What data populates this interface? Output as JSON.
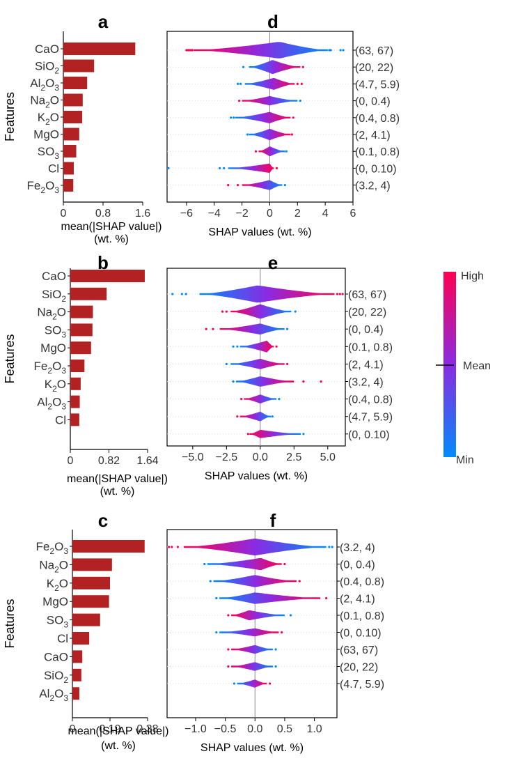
{
  "colors": {
    "bar": "#b22222",
    "high": "#ff0051",
    "mid": "#8a2be2",
    "low": "#008bfb",
    "axis": "#000000",
    "grid": "#dddddd",
    "zero": "#888888",
    "text": "#333333"
  },
  "colorbar": {
    "high": "High",
    "mean": "Mean",
    "low": "Min"
  },
  "chart_data": [
    {
      "id": "a",
      "type": "bar",
      "orientation": "horizontal",
      "panel_label": "a",
      "categories": [
        [
          "CaO"
        ],
        [
          "SiO",
          "2"
        ],
        [
          "Al",
          "2",
          "O",
          "3"
        ],
        [
          "Na",
          "2",
          "O"
        ],
        [
          "K",
          "2",
          "O"
        ],
        [
          "MgO"
        ],
        [
          "SO",
          "3"
        ],
        [
          "Cl"
        ],
        [
          "Fe",
          "2",
          "O",
          "3"
        ]
      ],
      "values": [
        1.45,
        0.62,
        0.48,
        0.39,
        0.38,
        0.32,
        0.26,
        0.21,
        0.2
      ],
      "xlim": [
        0,
        1.6
      ],
      "xticks": [
        0,
        0.8,
        1.6
      ],
      "xtick_labels": [
        "0",
        "0.8",
        "1.6"
      ],
      "ylabel": "Features",
      "xlabel": [
        "mean(|SHAP value|)",
        "(wt. %)"
      ]
    },
    {
      "id": "b",
      "type": "bar",
      "orientation": "horizontal",
      "panel_label": "b",
      "categories": [
        [
          "CaO"
        ],
        [
          "SiO",
          "2"
        ],
        [
          "Na",
          "2",
          "O"
        ],
        [
          "SO",
          "3"
        ],
        [
          "MgO"
        ],
        [
          "Fe",
          "2",
          "O",
          "3"
        ],
        [
          "K",
          "2",
          "O"
        ],
        [
          "Al",
          "2",
          "O",
          "3"
        ],
        [
          "Cl"
        ]
      ],
      "values": [
        1.58,
        0.77,
        0.48,
        0.47,
        0.44,
        0.3,
        0.22,
        0.2,
        0.19
      ],
      "xlim": [
        0,
        1.64
      ],
      "xticks": [
        0,
        0.82,
        1.64
      ],
      "xtick_labels": [
        "0",
        "0.82",
        "1.64"
      ],
      "ylabel": "Features",
      "xlabel": [
        "mean(|SHAP value|)",
        "(wt. %)"
      ]
    },
    {
      "id": "c",
      "type": "bar",
      "orientation": "horizontal",
      "panel_label": "c",
      "categories": [
        [
          "Fe",
          "2",
          "O",
          "3"
        ],
        [
          "Na",
          "2",
          "O"
        ],
        [
          "K",
          "2",
          "O"
        ],
        [
          "MgO"
        ],
        [
          "SO",
          "3"
        ],
        [
          "Cl"
        ],
        [
          "CaO"
        ],
        [
          "SiO",
          "2"
        ],
        [
          "Al",
          "2",
          "O",
          "3"
        ]
      ],
      "values": [
        0.365,
        0.2,
        0.19,
        0.185,
        0.14,
        0.085,
        0.05,
        0.045,
        0.035
      ],
      "xlim": [
        0,
        0.38
      ],
      "xticks": [
        0,
        0.19,
        0.38
      ],
      "xtick_labels": [
        "0",
        "0.19",
        "0.38"
      ],
      "ylabel": "Features",
      "xlabel": [
        "mean(|SHAP value|)",
        "(wt. %)"
      ]
    },
    {
      "id": "d",
      "type": "violin",
      "panel_label": "d",
      "row_labels": [
        "(63, 67)",
        "(20, 22)",
        "(4.7, 5.9)",
        "(0, 0.4)",
        "(0.4, 0.8)",
        "(2, 4.1)",
        "(0.1, 0.8)",
        "(0, 0.10)",
        "(3.2, 4)"
      ],
      "rows": [
        {
          "min": -5.5,
          "max": 4.2,
          "center": 0.7,
          "width": 0.5,
          "dir": -1,
          "out_left": [
            -6.0,
            -5.9,
            -5.8,
            -5.7,
            -5.6,
            -5.6
          ],
          "out_right": [
            4.3,
            4.4,
            5.1,
            5.3
          ]
        },
        {
          "min": -1.5,
          "max": 2.2,
          "center": 0.2,
          "width": 0.42,
          "dir": 1,
          "out_left": [
            -1.9
          ],
          "out_right": [
            2.4
          ]
        },
        {
          "min": -1.8,
          "max": 1.8,
          "center": 0.3,
          "width": 0.36,
          "dir": 1,
          "out_left": [
            -2.3,
            -2.1
          ],
          "out_right": [
            2.0,
            2.3
          ]
        },
        {
          "min": -2.0,
          "max": 2.0,
          "center": 0.0,
          "width": 0.28,
          "dir": -1,
          "out_left": [
            -2.2
          ],
          "out_right": [
            2.2
          ]
        },
        {
          "min": -2.5,
          "max": 1.5,
          "center": 0.0,
          "width": 0.34,
          "dir": 1,
          "out_left": [
            -2.8,
            -2.6
          ],
          "out_right": [
            1.7
          ]
        },
        {
          "min": -1.5,
          "max": 1.5,
          "center": 0.0,
          "width": 0.34,
          "dir": 1,
          "out_left": [
            -1.6
          ],
          "out_right": [
            1.6
          ]
        },
        {
          "min": -0.8,
          "max": 1.1,
          "center": 0.0,
          "width": 0.3,
          "dir": -1,
          "out_left": [
            -1.0
          ],
          "out_right": [
            1.2
          ]
        },
        {
          "min": -3.0,
          "max": 0.3,
          "center": 0.0,
          "width": 0.28,
          "dir": 1,
          "out_left": [
            -7.3,
            -3.6,
            -3.3
          ],
          "out_right": [
            0.5
          ]
        },
        {
          "min": -2.0,
          "max": 0.9,
          "center": 0.0,
          "width": 0.3,
          "dir": -1,
          "out_left": [
            -3.0,
            -2.3
          ],
          "out_right": [
            1.1
          ]
        }
      ],
      "xlim": [
        -7.4,
        6.0
      ],
      "xticks": [
        -6,
        -4,
        -2,
        0,
        2,
        4,
        6
      ],
      "xtick_labels": [
        "−6",
        "−4",
        "−2",
        "0",
        "2",
        "4",
        "6"
      ],
      "xlabel": "SHAP values (wt. %)"
    },
    {
      "id": "e",
      "type": "violin",
      "panel_label": "e",
      "row_labels": [
        "(63, 67)",
        "(20, 22)",
        "(0, 0.4)",
        "(0.1, 0.8)",
        "(2, 4.1)",
        "(3.2, 4)",
        "(0.4, 0.8)",
        "(4.7, 5.9)",
        "(0, 0.10)"
      ],
      "rows": [
        {
          "min": -4.5,
          "max": 5.5,
          "center": -0.2,
          "width": 0.5,
          "dir": 1,
          "out_left": [
            -6.5,
            -5.8,
            -5.5
          ],
          "out_right": [
            5.7,
            5.9,
            6.1
          ]
        },
        {
          "min": -2.2,
          "max": 2.3,
          "center": 0.0,
          "width": 0.42,
          "dir": -1,
          "out_left": [
            -2.8,
            -2.5
          ],
          "out_right": [
            2.6
          ]
        },
        {
          "min": -3.0,
          "max": 1.8,
          "center": 0.0,
          "width": 0.32,
          "dir": -1,
          "out_left": [
            -4.0,
            -3.5
          ],
          "out_right": [
            2.0
          ]
        },
        {
          "min": -1.5,
          "max": 1.0,
          "center": 0.5,
          "width": 0.34,
          "dir": 1,
          "out_left": [
            -2.0,
            -1.7
          ],
          "out_right": [
            1.2
          ]
        },
        {
          "min": -2.2,
          "max": 1.8,
          "center": 0.0,
          "width": 0.3,
          "dir": 1,
          "out_left": [
            -2.5
          ],
          "out_right": [
            2.0
          ]
        },
        {
          "min": -1.8,
          "max": 2.5,
          "center": 0.0,
          "width": 0.3,
          "dir": 1,
          "out_left": [
            -2.0
          ],
          "out_right": [
            3.2,
            4.5
          ]
        },
        {
          "min": -1.2,
          "max": 1.2,
          "center": 0.0,
          "width": 0.26,
          "dir": -1,
          "out_left": [
            -1.4
          ],
          "out_right": [
            1.4
          ]
        },
        {
          "min": -1.5,
          "max": 0.8,
          "center": 0.0,
          "width": 0.28,
          "dir": -1,
          "out_left": [
            -1.7
          ],
          "out_right": [
            0.9
          ]
        },
        {
          "min": -0.8,
          "max": 3.0,
          "center": 0.0,
          "width": 0.24,
          "dir": -1,
          "out_left": [
            -0.9
          ],
          "out_right": [
            3.2
          ]
        }
      ],
      "xlim": [
        -6.9,
        6.3
      ],
      "xticks": [
        -5,
        -2.5,
        0,
        2.5,
        5
      ],
      "xtick_labels": [
        "−5.0",
        "−2.5",
        "0.0",
        "2.5",
        "5.0"
      ],
      "xlabel": "SHAP values (wt. %)"
    },
    {
      "id": "f",
      "type": "violin",
      "panel_label": "f",
      "row_labels": [
        "(3.2, 4)",
        "(0, 0.4)",
        "(0.4, 0.8)",
        "(2, 4.1)",
        "(0.1, 0.8)",
        "(0, 0.10)",
        "(63, 67)",
        "(20, 22)",
        "(4.7, 5.9)"
      ],
      "rows": [
        {
          "min": -1.2,
          "max": 1.2,
          "center": 0.0,
          "width": 0.5,
          "dir": -1,
          "out_left": [
            -1.45,
            -1.4,
            -1.3
          ],
          "out_right": [
            1.25,
            1.3
          ]
        },
        {
          "min": -0.8,
          "max": 0.45,
          "center": 0.1,
          "width": 0.36,
          "dir": 1,
          "out_left": [
            -0.85
          ],
          "out_right": [
            0.5
          ]
        },
        {
          "min": -0.7,
          "max": 0.7,
          "center": 0.0,
          "width": 0.36,
          "dir": 1,
          "out_left": [
            -0.75
          ],
          "out_right": [
            0.75
          ]
        },
        {
          "min": -0.6,
          "max": 1.1,
          "center": 0.0,
          "width": 0.34,
          "dir": 1,
          "out_left": [
            -0.65
          ],
          "out_right": [
            1.2
          ]
        },
        {
          "min": -0.4,
          "max": 0.5,
          "center": -0.1,
          "width": 0.3,
          "dir": -1,
          "out_left": [
            -0.45
          ],
          "out_right": [
            0.6
          ]
        },
        {
          "min": -0.6,
          "max": 0.4,
          "center": 0.0,
          "width": 0.24,
          "dir": 1,
          "out_left": [
            -0.65
          ],
          "out_right": [
            0.45
          ]
        },
        {
          "min": -0.4,
          "max": 0.3,
          "center": 0.0,
          "width": 0.26,
          "dir": -1,
          "out_left": [
            -0.45
          ],
          "out_right": [
            0.35
          ]
        },
        {
          "min": -0.4,
          "max": 0.3,
          "center": 0.0,
          "width": 0.26,
          "dir": -1,
          "out_left": [
            -0.45
          ],
          "out_right": [
            0.35
          ]
        },
        {
          "min": -0.3,
          "max": 0.2,
          "center": 0.0,
          "width": 0.24,
          "dir": 1,
          "out_left": [
            -0.35
          ],
          "out_right": [
            0.25
          ]
        }
      ],
      "xlim": [
        -1.48,
        1.38
      ],
      "xticks": [
        -1,
        -0.5,
        0,
        0.5,
        1
      ],
      "xtick_labels": [
        "−1.0",
        "−0.5",
        "0.0",
        "0.5",
        "1.0"
      ],
      "xlabel": "SHAP values (wt. %)"
    }
  ]
}
